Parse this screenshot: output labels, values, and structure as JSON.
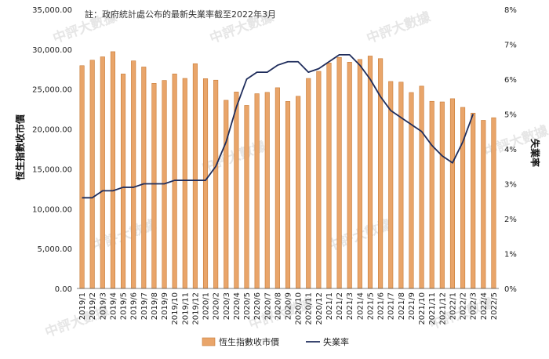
{
  "chart_data": {
    "type": "bar",
    "annotation": "註：政府統計處公布的最新失業率截至2022年3月",
    "watermark": "中評大數據",
    "ylabel": "恆生指數收市價",
    "y2label": "失業率",
    "ylim": [
      0,
      35000
    ],
    "y2lim": [
      0,
      8
    ],
    "y_ticks": [
      "0.00",
      "5,000.00",
      "10,000.00",
      "15,000.00",
      "20,000.00",
      "25,000.00",
      "30,000.00",
      "35,000.00"
    ],
    "y2_ticks": [
      "0%",
      "1%",
      "2%",
      "3%",
      "4%",
      "5%",
      "6%",
      "7%",
      "8%"
    ],
    "grid": false,
    "legend_position": "bottom",
    "categories": [
      "2019/1",
      "2019/2",
      "2019/3",
      "2019/4",
      "2019/5",
      "2019/6",
      "2019/7",
      "2019/8",
      "2019/9",
      "2019/10",
      "2019/11",
      "2019/12",
      "2020/1",
      "2020/2",
      "2020/3",
      "2020/4",
      "2020/5",
      "2020/6",
      "2020/7",
      "2020/8",
      "2020/9",
      "2020/10",
      "2020/11",
      "2020/12",
      "2021/1",
      "2021/2",
      "2021/3",
      "2021/4",
      "2021/5",
      "2021/6",
      "2021/7",
      "2021/8",
      "2021/9",
      "2021/10",
      "2021/11",
      "2021/12",
      "2022/1",
      "2022/2",
      "2022/3",
      "2022/4",
      "2022/5"
    ],
    "series": [
      {
        "name": "恆生指數收市價",
        "kind": "bar",
        "axis": "left",
        "color": "#e9a56a",
        "values": [
          27943,
          28633,
          29051,
          29699,
          26901,
          28543,
          27778,
          25725,
          26092,
          26907,
          26346,
          28190,
          26313,
          26130,
          23603,
          24644,
          22961,
          24427,
          24595,
          25177,
          23459,
          24107,
          26341,
          27231,
          28284,
          28980,
          28378,
          28725,
          29151,
          28828,
          25961,
          25879,
          24576,
          25377,
          23475,
          23398,
          23802,
          22713,
          21997,
          21089,
          21415
        ]
      },
      {
        "name": "失業率",
        "kind": "line",
        "axis": "right",
        "color": "#1f2d5c",
        "values": [
          2.6,
          2.6,
          2.8,
          2.8,
          2.9,
          2.9,
          3.0,
          3.0,
          3.0,
          3.1,
          3.1,
          3.1,
          3.1,
          3.5,
          4.2,
          5.2,
          6.0,
          6.2,
          6.2,
          6.4,
          6.5,
          6.5,
          6.2,
          6.3,
          6.5,
          6.7,
          6.7,
          6.4,
          6.0,
          5.5,
          5.1,
          4.9,
          4.7,
          4.5,
          4.1,
          3.8,
          3.6,
          4.2,
          5.0,
          null,
          null
        ]
      }
    ]
  }
}
